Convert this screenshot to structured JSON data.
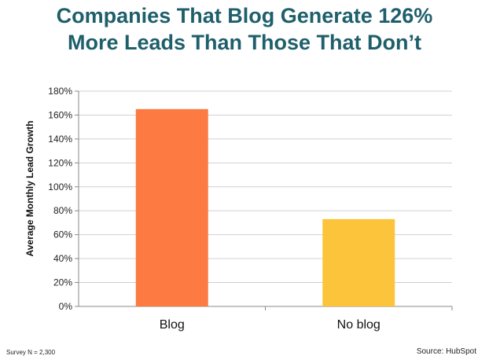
{
  "title_lines": [
    "Companies That Blog Generate 126%",
    "More Leads Than Those That Don’t"
  ],
  "footnote": "Survey N = 2,300",
  "source": "Source: HubSpot",
  "colors": {
    "title": "#1e5f6b",
    "grid": "#d0d0d0",
    "axis": "#888888"
  },
  "chart_data": {
    "type": "bar",
    "title": "Companies That Blog Generate 126% More Leads Than Those That Don’t",
    "xlabel": "",
    "ylabel": "Average Monthly Lead Growth",
    "categories": [
      "Blog",
      "No blog"
    ],
    "values": [
      165,
      73
    ],
    "bar_colors": [
      "#fd7a42",
      "#fbc43a"
    ],
    "unit": "%",
    "ylim": [
      0,
      180
    ],
    "yticks": [
      0,
      20,
      40,
      60,
      80,
      100,
      120,
      140,
      160,
      180
    ],
    "ytick_labels": [
      "0%",
      "20%",
      "40%",
      "60%",
      "80%",
      "100%",
      "120%",
      "140%",
      "160%",
      "180%"
    ],
    "grid": true,
    "legend": "none"
  }
}
